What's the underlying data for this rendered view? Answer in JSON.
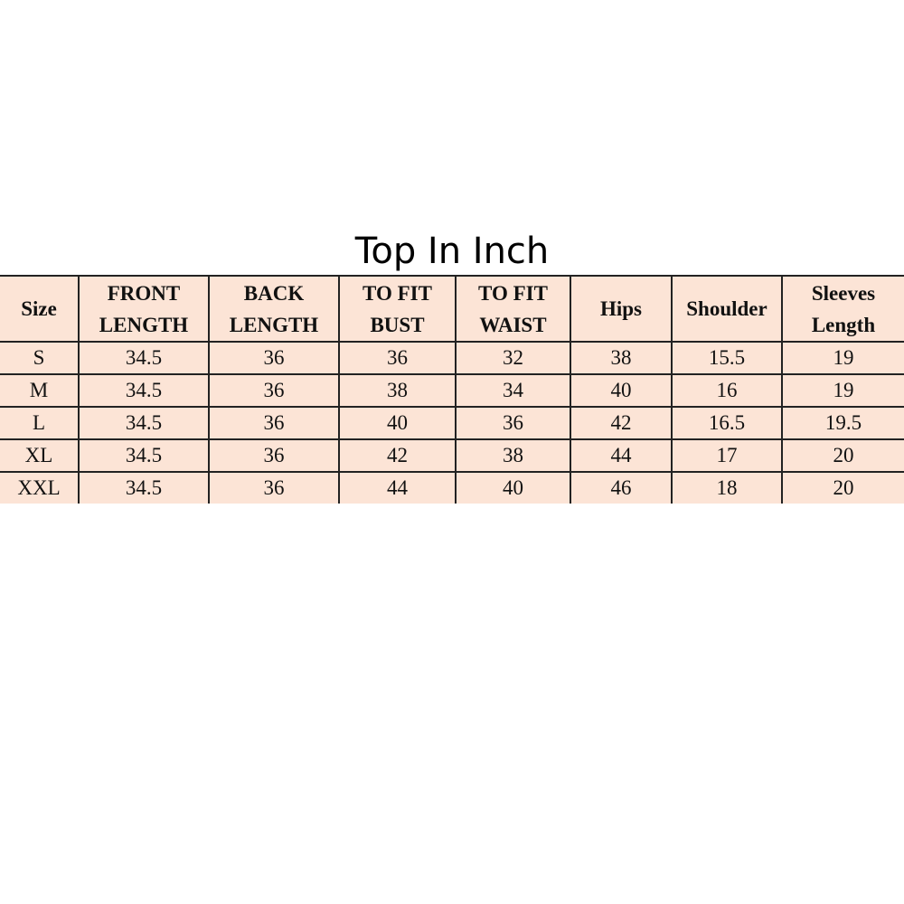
{
  "title": "Top In Inch",
  "headers": [
    [
      "Size",
      ""
    ],
    [
      "FRONT",
      "LENGTH"
    ],
    [
      "BACK",
      "LENGTH"
    ],
    [
      "TO FIT",
      "BUST"
    ],
    [
      "TO FIT",
      "WAIST"
    ],
    [
      "Hips",
      ""
    ],
    [
      "Shoulder",
      ""
    ],
    [
      "Sleeves",
      "Length"
    ]
  ],
  "rows": [
    [
      "S",
      "34.5",
      "36",
      "36",
      "32",
      "38",
      "15.5",
      "19"
    ],
    [
      "M",
      "34.5",
      "36",
      "38",
      "34",
      "40",
      "16",
      "19"
    ],
    [
      "L",
      "34.5",
      "36",
      "40",
      "36",
      "42",
      "16.5",
      "19.5"
    ],
    [
      "XL",
      "34.5",
      "36",
      "42",
      "38",
      "44",
      "17",
      "20"
    ],
    [
      "XXL",
      "34.5",
      "36",
      "44",
      "40",
      "46",
      "18",
      "20"
    ]
  ],
  "colors": {
    "table_bg": "#fce4d6",
    "border": "#222222"
  }
}
